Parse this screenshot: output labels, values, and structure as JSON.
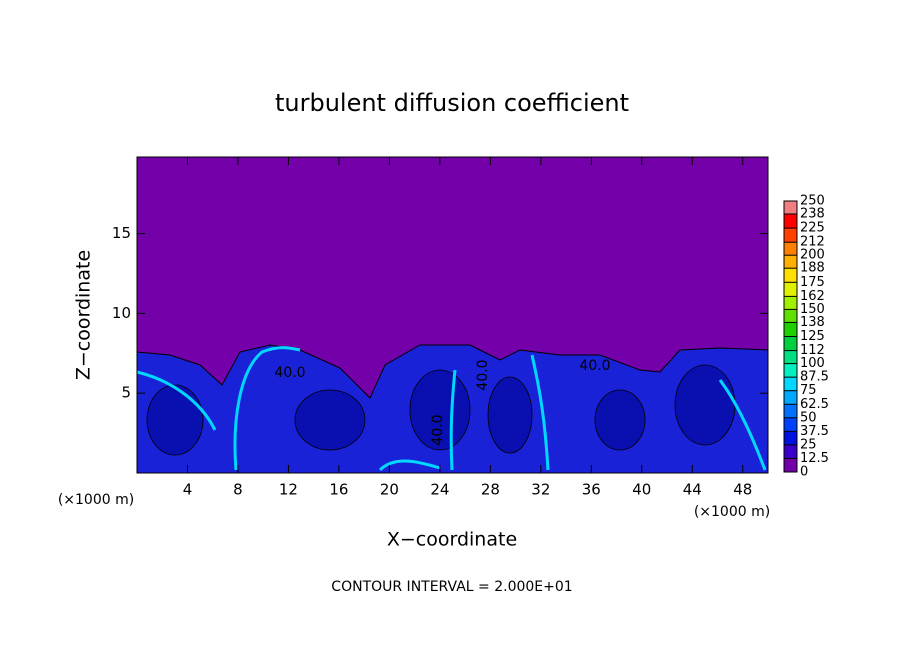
{
  "chart_data": {
    "type": "contour",
    "title": "turbulent diffusion coefficient",
    "x_label": "X−coordinate",
    "y_label": "Z−coordinate",
    "x_unit": "(×1000 m)",
    "y_unit": "(×1000 m)",
    "footnote": "CONTOUR INTERVAL = 2.000E+01",
    "xlim": [
      0,
      50
    ],
    "xticks": [
      4,
      8,
      12,
      16,
      20,
      24,
      28,
      32,
      36,
      40,
      44,
      48
    ],
    "ylim": [
      0,
      19.8
    ],
    "yticks": [
      5,
      10,
      15
    ],
    "contour_labels": [
      "40.0",
      "40.0",
      "40.0",
      "40.0"
    ],
    "colorbar": {
      "levels": [
        0,
        12.5,
        25,
        37.5,
        50,
        62.5,
        75,
        87.5,
        100,
        112,
        125,
        138,
        150,
        162,
        175,
        188,
        200,
        212,
        225,
        238,
        250
      ],
      "colors": [
        "#7300a8",
        "#3800c8",
        "#0010e0",
        "#0040ff",
        "#0070ff",
        "#00a8ff",
        "#00d8ff",
        "#00f0c0",
        "#00e080",
        "#00d040",
        "#20d000",
        "#60e000",
        "#a0f000",
        "#e0f000",
        "#ffe000",
        "#ffb000",
        "#ff8000",
        "#ff4000",
        "#ff0000",
        "#f08080"
      ]
    }
  }
}
